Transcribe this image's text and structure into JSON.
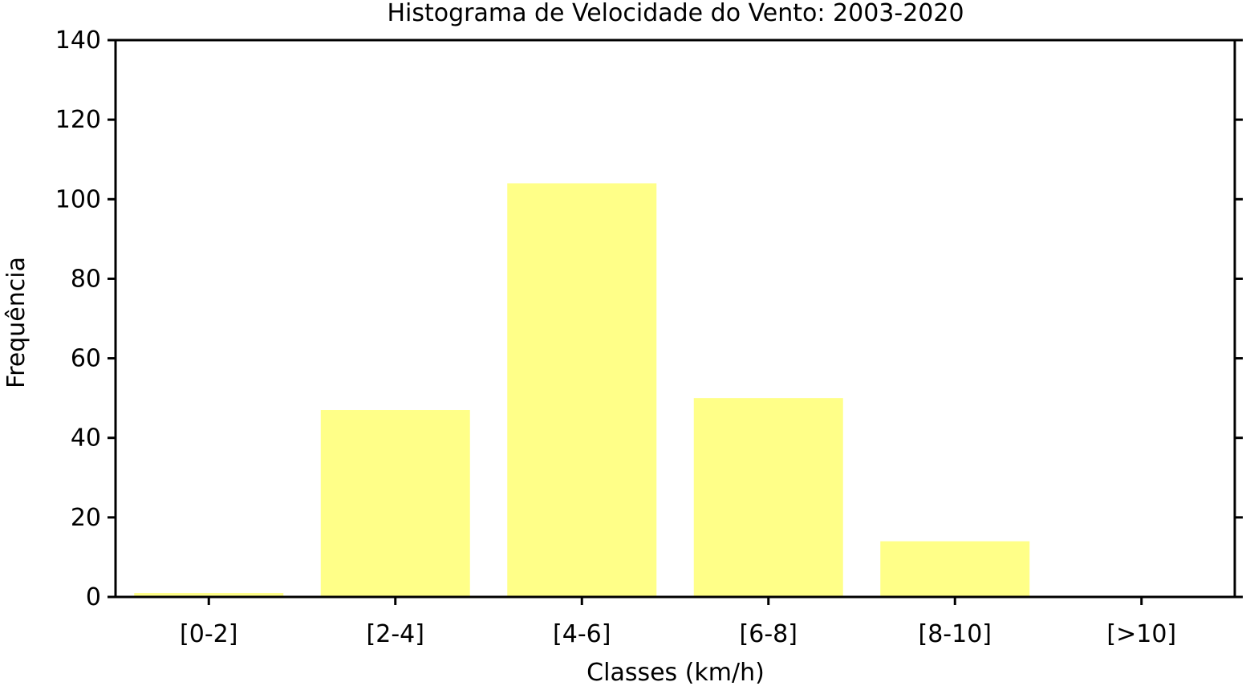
{
  "chart_data": {
    "type": "bar",
    "title": "Histograma de Velocidade do Vento: 2003-2020",
    "xlabel": "Classes (km/h)",
    "ylabel": "Frequência",
    "categories": [
      "[0-2]",
      "[2-4]",
      "[4-6]",
      "[6-8]",
      "[8-10]",
      "[>10]"
    ],
    "values": [
      1,
      47,
      104,
      50,
      14,
      0
    ],
    "ylim": [
      0,
      140
    ],
    "yticks": [
      0,
      20,
      40,
      60,
      80,
      100,
      120,
      140
    ],
    "bar_color": "#ffff88",
    "grid": false,
    "legend": "none"
  }
}
